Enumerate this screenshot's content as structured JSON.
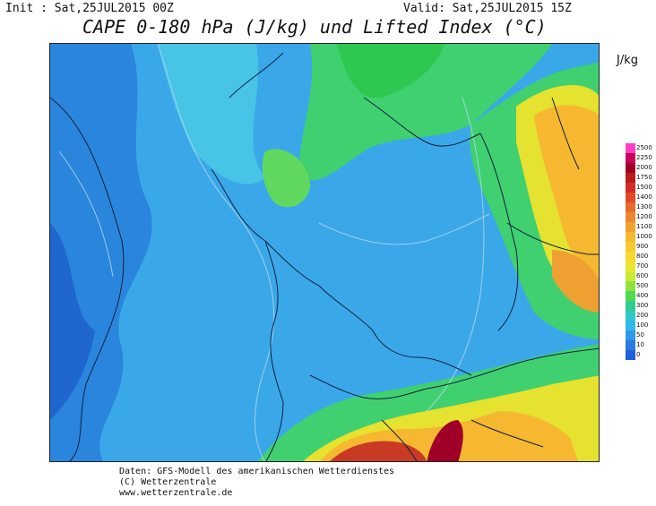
{
  "header": {
    "init_text": "Init : Sat,25JUL2015 00Z",
    "valid_text": "Valid: Sat,25JUL2015 15Z",
    "title": "CAPE 0-180 hPa (J/kg) und Lifted Index (°C)"
  },
  "legend": {
    "unit": "J/kg",
    "levels": [
      "2500",
      "2250",
      "2000",
      "1750",
      "1500",
      "1400",
      "1300",
      "1200",
      "1100",
      "1000",
      "900",
      "800",
      "700",
      "600",
      "500",
      "400",
      "300",
      "200",
      "100",
      "50",
      "10",
      "0"
    ],
    "colors": [
      "#ff3fbf",
      "#c8005a",
      "#a00028",
      "#b81c1c",
      "#d22c2c",
      "#e04a2a",
      "#e86a2e",
      "#ee8830",
      "#f2a230",
      "#f6b830",
      "#f8c830",
      "#fad830",
      "#e8e630",
      "#c8ec30",
      "#90e040",
      "#50d850",
      "#30cc90",
      "#30c8c8",
      "#30b8e8",
      "#3098e8",
      "#2c7ae0",
      "#2060d8"
    ]
  },
  "credits": {
    "line1": "Daten: GFS-Modell des amerikanischen Wetterdienstes",
    "line2": "(C) Wetterzentrale",
    "line3": "www.wetterzentrale.de"
  }
}
